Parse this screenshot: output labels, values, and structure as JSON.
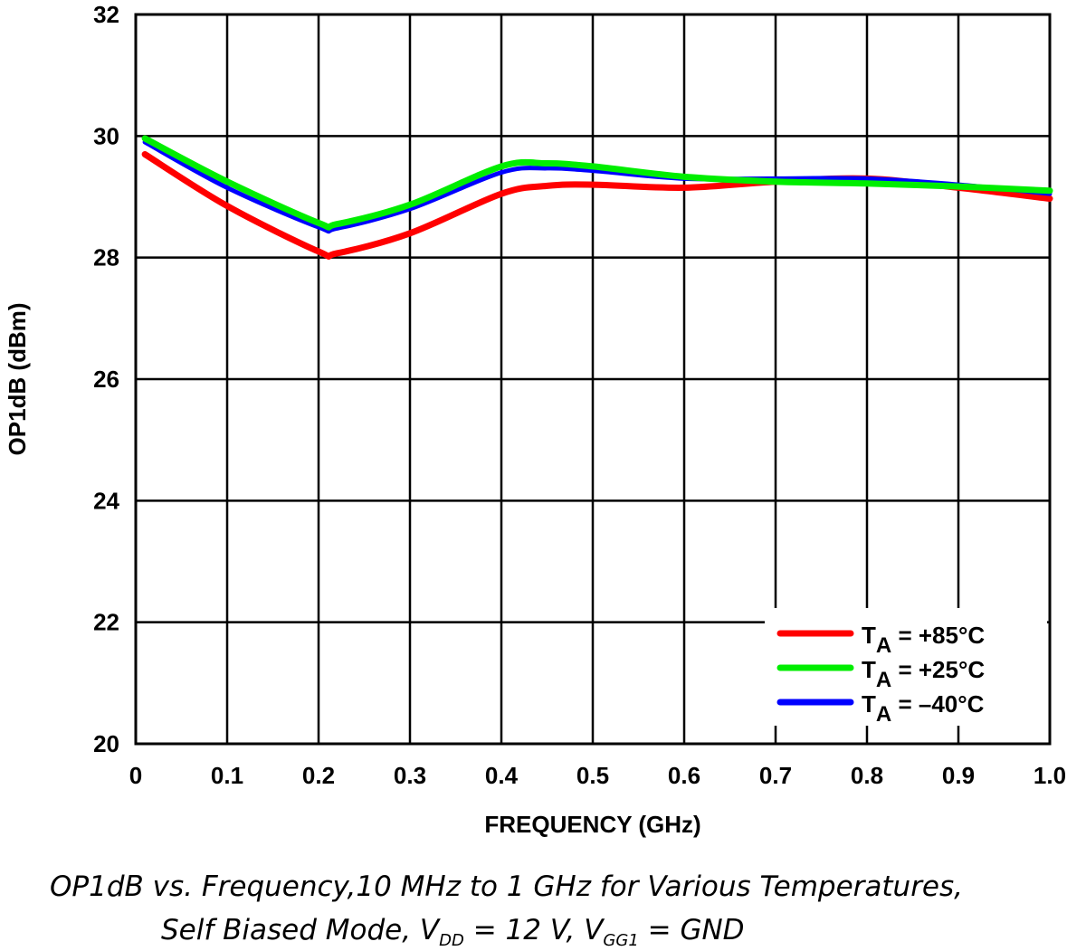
{
  "chart_data": {
    "type": "line",
    "xlabel": "FREQUENCY (GHz)",
    "ylabel": "OP1dB (dBm)",
    "xlim": [
      0,
      1.0
    ],
    "ylim": [
      20,
      32
    ],
    "xticks": [
      "0",
      "0.1",
      "0.2",
      "0.3",
      "0.4",
      "0.5",
      "0.6",
      "0.7",
      "0.8",
      "0.9",
      "1.0"
    ],
    "yticks": [
      "20",
      "22",
      "24",
      "26",
      "28",
      "30",
      "32"
    ],
    "grid": true,
    "legend_placement": "bottom-right",
    "x": [
      0.01,
      0.1,
      0.2,
      0.22,
      0.3,
      0.4,
      0.45,
      0.5,
      0.6,
      0.7,
      0.8,
      0.9,
      1.0
    ],
    "series": [
      {
        "name": "T_A = +85°C",
        "label_main": "T",
        "label_sub": "A",
        "label_rest": " = +85°C",
        "color": "#ff0000",
        "values": [
          29.7,
          28.85,
          28.1,
          28.07,
          28.4,
          29.05,
          29.18,
          29.2,
          29.15,
          29.25,
          29.3,
          29.15,
          28.97
        ]
      },
      {
        "name": "T_A = +25°C",
        "label_main": "T",
        "label_sub": "A",
        "label_rest": " = +25°C",
        "color": "#00ee00",
        "values": [
          29.96,
          29.25,
          28.57,
          28.55,
          28.87,
          29.5,
          29.55,
          29.5,
          29.33,
          29.25,
          29.22,
          29.17,
          29.1
        ]
      },
      {
        "name": "T_A = –40°C",
        "label_main": "T",
        "label_sub": "A",
        "label_rest": " = –40°C",
        "color": "#0000ff",
        "values": [
          29.9,
          29.15,
          28.5,
          28.48,
          28.8,
          29.4,
          29.47,
          29.43,
          29.3,
          29.3,
          29.3,
          29.2,
          29.05
        ]
      }
    ]
  },
  "caption": {
    "line1": "OP1dB vs. Frequency,10 MHz to 1 GHz for Various Temperatures,",
    "line2_a": "Self Biased Mode, V",
    "line2_dd": "DD",
    "line2_b": " = 12 V, V",
    "line2_gg": "GG1",
    "line2_c": " = GND"
  }
}
